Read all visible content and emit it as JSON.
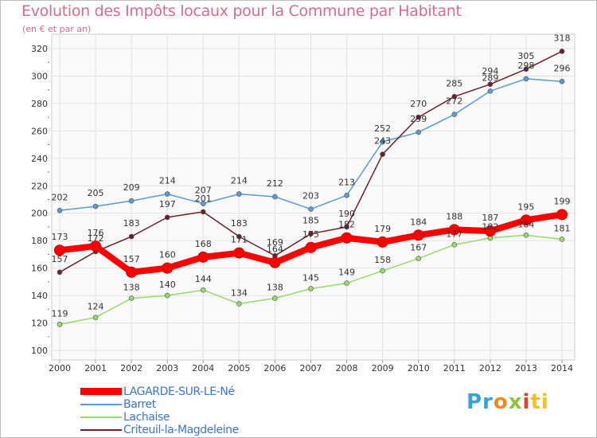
{
  "header": {
    "title": "Evolution des Impôts locaux pour la Commune par Habitant",
    "subtitle": "(en € et par an)"
  },
  "logo": {
    "part1": "Pr",
    "part2": "o",
    "part3": "x",
    "part4": "i",
    "part5": "ti"
  },
  "chart_data": {
    "type": "line",
    "title": "Evolution des Impôts locaux pour la Commune par Habitant",
    "subtitle": "(en € et par an)",
    "xlabel": "",
    "ylabel": "",
    "categories": [
      "2000",
      "2001",
      "2002",
      "2003",
      "2004",
      "2005",
      "2006",
      "2007",
      "2008",
      "2009",
      "2010",
      "2011",
      "2012",
      "2013",
      "2014"
    ],
    "ylim": [
      100,
      320
    ],
    "yticks": [
      100,
      120,
      140,
      160,
      180,
      200,
      220,
      240,
      260,
      280,
      300,
      320
    ],
    "grid": true,
    "legend_position": "bottom-left",
    "series": [
      {
        "name": "LAGARDE-SUR-LE-Né",
        "color": "#ff0000",
        "values": [
          173,
          176,
          157,
          160,
          168,
          171,
          164,
          175,
          182,
          179,
          184,
          188,
          187,
          195,
          199
        ]
      },
      {
        "name": "Barret",
        "color": "#5b9bd5",
        "values": [
          202,
          205,
          209,
          214,
          207,
          214,
          212,
          203,
          213,
          252,
          259,
          272,
          289,
          298,
          296
        ]
      },
      {
        "name": "Lachaise",
        "color": "#99d86b",
        "values": [
          119,
          124,
          138,
          140,
          144,
          134,
          138,
          145,
          149,
          158,
          167,
          177,
          182,
          184,
          181
        ]
      },
      {
        "name": "Criteuil-la-Magdeleine",
        "color": "#6b1f2a",
        "values": [
          157,
          172,
          183,
          197,
          201,
          183,
          169,
          185,
          190,
          243,
          270,
          285,
          294,
          305,
          318
        ]
      }
    ],
    "data_labels": [
      [
        "173",
        "176",
        "157",
        "160",
        "168",
        "171",
        "164",
        "175",
        "182",
        "179",
        "184",
        "188",
        "187",
        "195",
        "199"
      ],
      [
        "202",
        "205",
        "209",
        "214",
        "207",
        "214",
        "212",
        "203",
        "213",
        "252",
        "259",
        "272",
        "289",
        "298",
        "296"
      ],
      [
        "119",
        "124",
        "138",
        "140",
        "144",
        "134",
        "138",
        "145",
        "149",
        "158",
        "167",
        "177",
        "182",
        "184",
        "181"
      ],
      [
        "157",
        "172",
        "183",
        "197",
        "201",
        "183",
        "169",
        "185",
        "190",
        "243",
        "270",
        "285",
        "294",
        "305",
        "318"
      ]
    ]
  }
}
